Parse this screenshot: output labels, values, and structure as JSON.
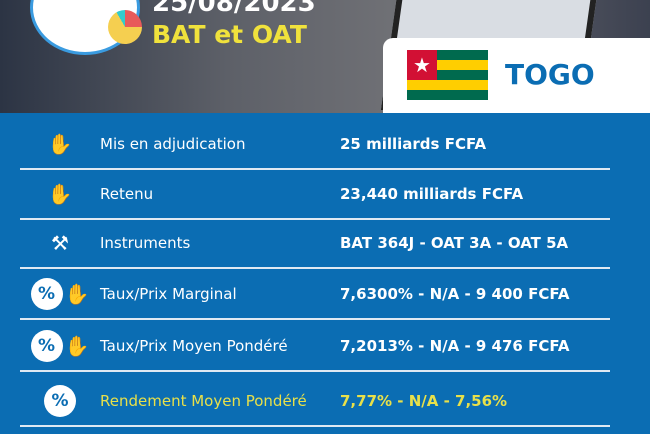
{
  "header": {
    "date": "25/08/2023",
    "subtitle": "BAT et OAT",
    "country": "TOGO"
  },
  "rows": [
    {
      "label": "Mis en adjudication",
      "value": "25 milliards FCFA",
      "icons": [
        "bid-hand-icon"
      ]
    },
    {
      "label": "Retenu",
      "value": "23,440 milliards FCFA",
      "icons": [
        "bid-hand-icon"
      ]
    },
    {
      "label": "Instruments",
      "value": "BAT 364J - OAT 3A - OAT 5A",
      "icons": [
        "gavel-icon"
      ]
    },
    {
      "label": "Taux/Prix Marginal",
      "value": "7,6300% - N/A - 9 400 FCFA",
      "icons": [
        "percent-icon",
        "bid-hand-icon"
      ]
    },
    {
      "label": "Taux/Prix Moyen Pondéré",
      "value": "7,2013% - N/A - 9 476 FCFA",
      "icons": [
        "percent-icon",
        "bid-hand-icon"
      ]
    },
    {
      "label": "Rendement Moyen Pondéré",
      "value": "7,77% - N/A - 7,56%",
      "icons": [
        "percent-icon"
      ]
    }
  ],
  "colors": {
    "blue": "#0b6db3",
    "yellow": "#e8e04a"
  }
}
